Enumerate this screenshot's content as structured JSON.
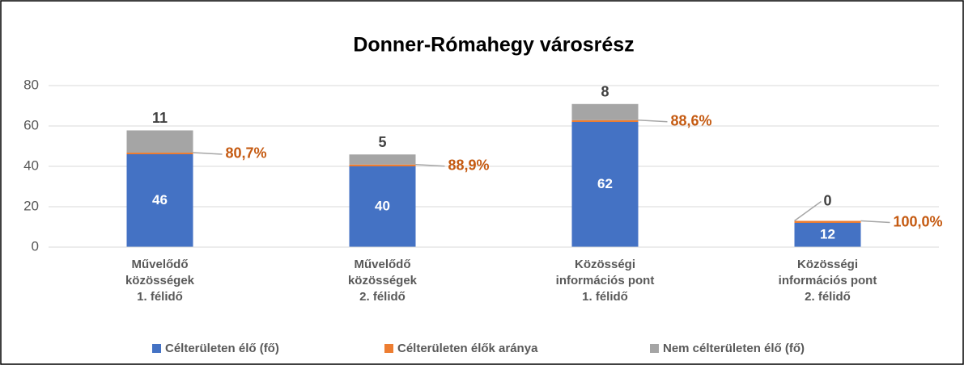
{
  "chart_data": {
    "type": "stacked-bar",
    "title": "Donner-Rómahegy városrész",
    "categories": [
      "Művelődő\nközösségek\n1. félidő",
      "Művelődő\nközösségek\n2. félidő",
      "Közösségi\ninformációs pont\n1. félidő",
      "Közösségi\ninformációs pont\n2. félidő"
    ],
    "series": [
      {
        "name": "Célterületen élő (fő)",
        "color": "#4472c4",
        "values": [
          46,
          40,
          62,
          12
        ]
      },
      {
        "name": "Célterületen élők aránya",
        "color": "#ed7d31",
        "values": [
          0.807,
          0.889,
          0.886,
          1.0
        ],
        "value_labels": [
          "80,7%",
          "88,9%",
          "88,6%",
          "100,0%"
        ]
      },
      {
        "name": "Nem célterületen élő (fő)",
        "color": "#a5a5a5",
        "values": [
          11,
          5,
          8,
          0
        ]
      }
    ],
    "ylim": [
      0,
      80
    ],
    "yticks": [
      0,
      20,
      40,
      60,
      80
    ],
    "grid": true,
    "legend": "bottom"
  }
}
